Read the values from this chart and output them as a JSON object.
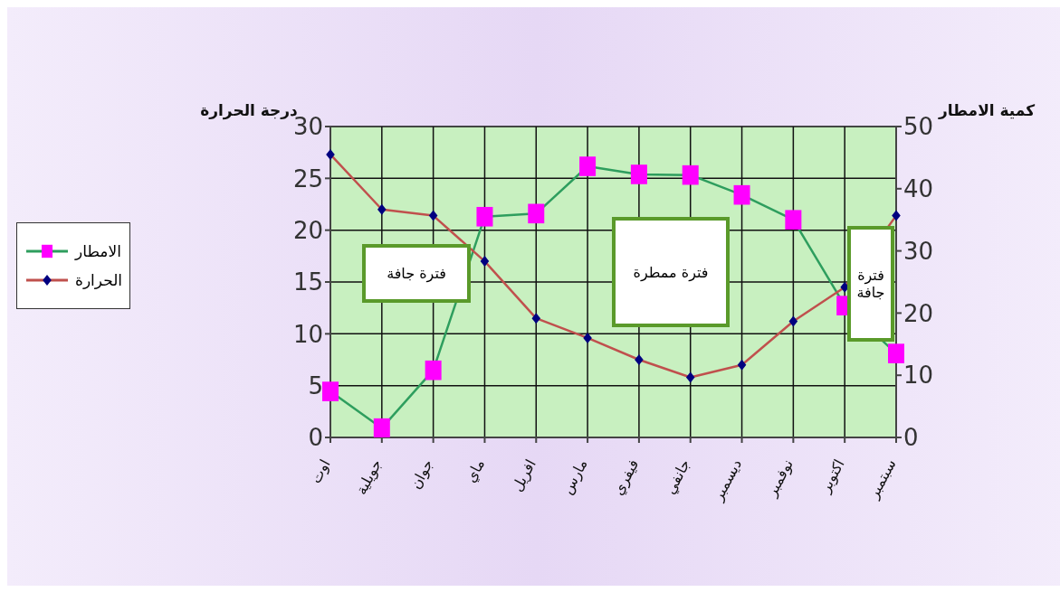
{
  "chart_data": {
    "type": "line",
    "ylabel": "درجة الحرارة",
    "y2label": "كمية الامطار",
    "categories": [
      "اوت",
      "جويلية",
      "جوان",
      "ماي",
      "افريل",
      "مارس",
      "فيفري",
      "جانفي",
      "ديسمبر",
      "نوفمبر",
      "اكتوبر",
      "سبتمبر"
    ],
    "series": [
      {
        "name": "الامطار",
        "axis": "y2",
        "color": "#2e9e5e",
        "marker": "square",
        "colors": [
          "#ff00ff",
          "#ff00ff",
          "#ff00ff",
          "#ff00ff",
          "#ff00ff",
          "#ff00ff",
          "#ff00ff",
          "#ff00ff",
          "#ff00ff",
          "#ff00ff",
          "#ff00ff",
          "#ff00ff"
        ],
        "values": [
          7.4,
          1.5,
          10.8,
          35.5,
          36,
          43.6,
          42.3,
          42.2,
          39,
          35,
          21.2,
          13.5
        ]
      },
      {
        "name": "الحرارة",
        "color": "#c0504d",
        "marker": "diamond",
        "colors": [
          "#000080",
          "#000080",
          "#000080",
          "#000080",
          "#000080",
          "#000080",
          "#000080",
          "#000080",
          "#000080",
          "#000080",
          "#000080",
          "#000080"
        ],
        "values": [
          27.3,
          22,
          21.4,
          17,
          11.5,
          9.6,
          7.5,
          5.8,
          7,
          11.2,
          14.5,
          21.4
        ]
      }
    ],
    "ylim": [
      0,
      30
    ],
    "yticks": [
      0,
      5,
      10,
      15,
      20,
      25,
      30
    ],
    "y2lim": [
      0,
      50
    ],
    "y2ticks": [
      0,
      10,
      20,
      30,
      40,
      50
    ],
    "grid": true,
    "legend": "left",
    "annotations": [
      "فترة جافة",
      "فترة ممطرة",
      "فترة جافة"
    ]
  }
}
